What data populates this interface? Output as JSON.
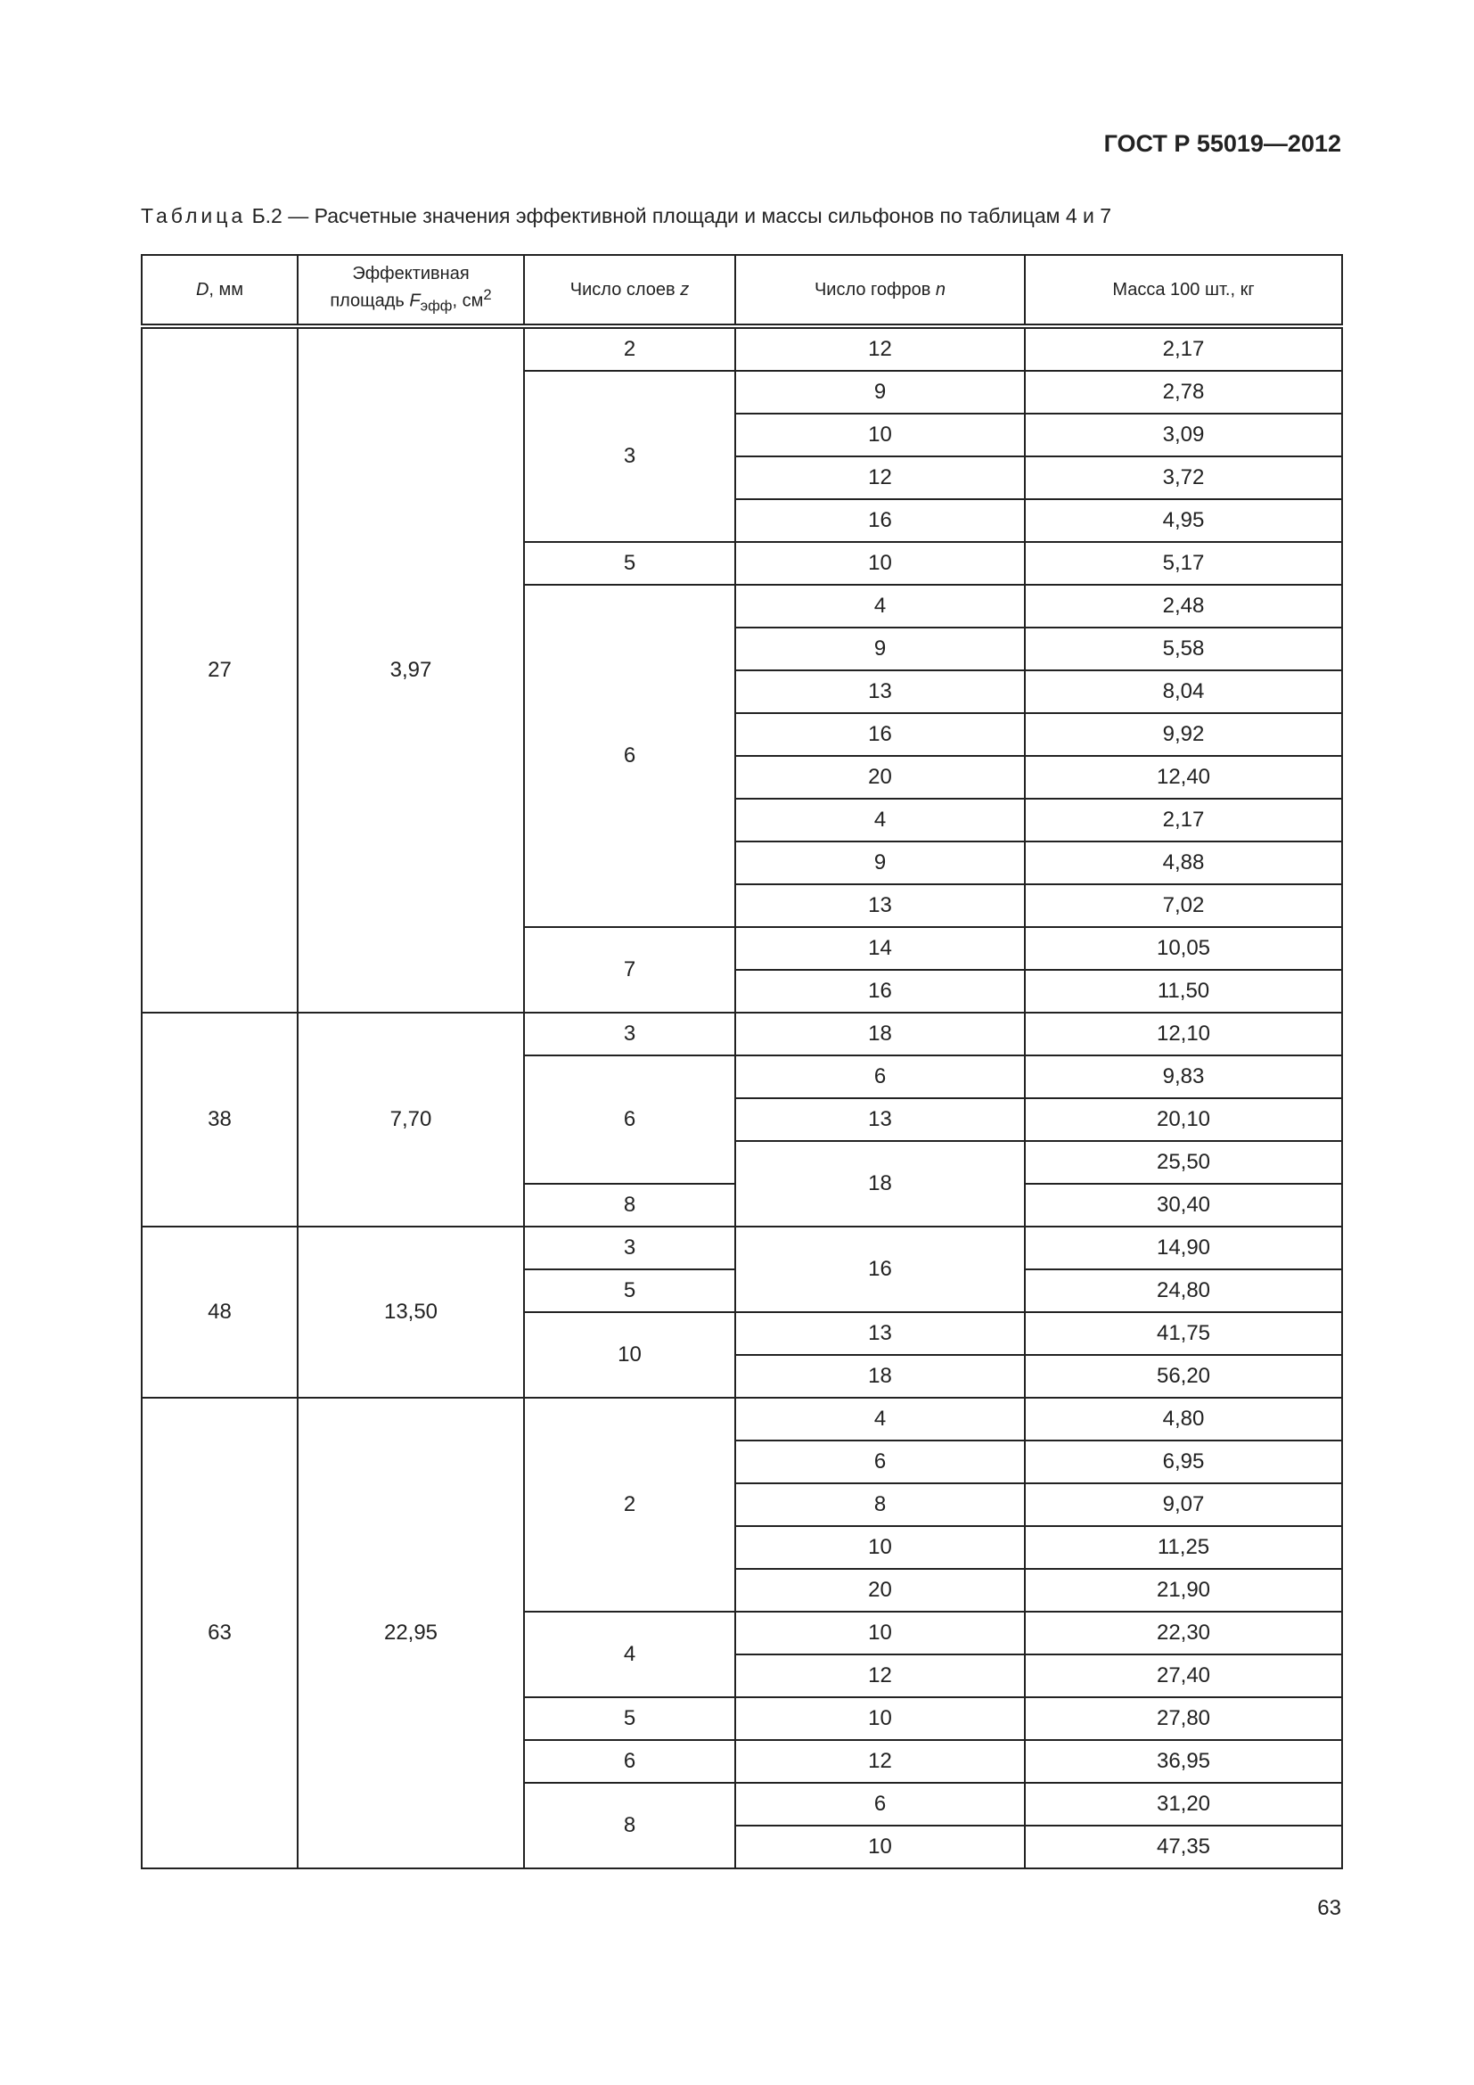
{
  "header": {
    "doc_id": "ГОСТ Р 55019—2012"
  },
  "caption": {
    "prefix": "Таблица",
    "text": "Б.2 — Расчетные значения эффективной площади и массы сильфонов по таблицам 4 и 7"
  },
  "table": {
    "columns": [
      {
        "main": "D",
        "rest": ", мм"
      },
      {
        "line1": "Эффективная",
        "line2": "площадь ",
        "sym": "F",
        "sub": "эфф",
        "unit": ", см",
        "sup": "2"
      },
      {
        "main": "Число слоев ",
        "sym": "z"
      },
      {
        "main": "Число гофров ",
        "sym": "n"
      },
      {
        "main": "Масса 100 шт., кг"
      }
    ],
    "rows": [
      [
        {
          "v": "27",
          "rs": 16
        },
        {
          "v": "3,97",
          "rs": 16
        },
        {
          "v": "2"
        },
        {
          "v": "12"
        },
        {
          "v": "2,17"
        }
      ],
      [
        {
          "v": "3",
          "rs": 4
        },
        {
          "v": "9"
        },
        {
          "v": "2,78"
        }
      ],
      [
        {
          "v": "10"
        },
        {
          "v": "3,09"
        }
      ],
      [
        {
          "v": "12"
        },
        {
          "v": "3,72"
        }
      ],
      [
        {
          "v": "16"
        },
        {
          "v": "4,95"
        }
      ],
      [
        {
          "v": "5"
        },
        {
          "v": "10"
        },
        {
          "v": "5,17"
        }
      ],
      [
        {
          "v": "6",
          "rs": 8
        },
        {
          "v": "4"
        },
        {
          "v": "2,48"
        }
      ],
      [
        {
          "v": "9"
        },
        {
          "v": "5,58"
        }
      ],
      [
        {
          "v": "13"
        },
        {
          "v": "8,04"
        }
      ],
      [
        {
          "v": "16"
        },
        {
          "v": "9,92"
        }
      ],
      [
        {
          "v": "20"
        },
        {
          "v": "12,40"
        }
      ],
      [
        {
          "v": "4"
        },
        {
          "v": "2,17"
        }
      ],
      [
        {
          "v": "9"
        },
        {
          "v": "4,88"
        }
      ],
      [
        {
          "v": "13"
        },
        {
          "v": "7,02"
        }
      ],
      [
        {
          "v": "7",
          "rs": 2
        },
        {
          "v": "14"
        },
        {
          "v": "10,05"
        }
      ],
      [
        {
          "v": "16"
        },
        {
          "v": "11,50"
        }
      ],
      [
        {
          "v": "38",
          "rs": 5
        },
        {
          "v": "7,70",
          "rs": 5
        },
        {
          "v": "3"
        },
        {
          "v": "18"
        },
        {
          "v": "12,10"
        }
      ],
      [
        {
          "v": "6",
          "rs": 3
        },
        {
          "v": "6"
        },
        {
          "v": "9,83"
        }
      ],
      [
        {
          "v": "13"
        },
        {
          "v": "20,10"
        }
      ],
      [
        {
          "v": "18",
          "rs": 2
        },
        {
          "v": "25,50"
        }
      ],
      [
        {
          "v": "8"
        },
        {
          "v": "30,40"
        }
      ],
      [
        {
          "v": "48",
          "rs": 4
        },
        {
          "v": "13,50",
          "rs": 4
        },
        {
          "v": "3"
        },
        {
          "v": "16",
          "rs": 2
        },
        {
          "v": "14,90"
        }
      ],
      [
        {
          "v": "5"
        },
        {
          "v": "24,80"
        }
      ],
      [
        {
          "v": "10",
          "rs": 2
        },
        {
          "v": "13"
        },
        {
          "v": "41,75"
        }
      ],
      [
        {
          "v": "18"
        },
        {
          "v": "56,20"
        }
      ],
      [
        {
          "v": "63",
          "rs": 11
        },
        {
          "v": "22,95",
          "rs": 11
        },
        {
          "v": "2",
          "rs": 5
        },
        {
          "v": "4"
        },
        {
          "v": "4,80"
        }
      ],
      [
        {
          "v": "6"
        },
        {
          "v": "6,95"
        }
      ],
      [
        {
          "v": "8"
        },
        {
          "v": "9,07"
        }
      ],
      [
        {
          "v": "10"
        },
        {
          "v": "11,25"
        }
      ],
      [
        {
          "v": "20"
        },
        {
          "v": "21,90"
        }
      ],
      [
        {
          "v": "4",
          "rs": 2
        },
        {
          "v": "10"
        },
        {
          "v": "22,30"
        }
      ],
      [
        {
          "v": "12"
        },
        {
          "v": "27,40"
        }
      ],
      [
        {
          "v": "5"
        },
        {
          "v": "10"
        },
        {
          "v": "27,80"
        }
      ],
      [
        {
          "v": "6"
        },
        {
          "v": "12"
        },
        {
          "v": "36,95"
        }
      ],
      [
        {
          "v": "8",
          "rs": 2
        },
        {
          "v": "6"
        },
        {
          "v": "31,20"
        }
      ],
      [
        {
          "v": "10"
        },
        {
          "v": "47,35"
        }
      ]
    ]
  },
  "footer": {
    "page_number": "63"
  }
}
